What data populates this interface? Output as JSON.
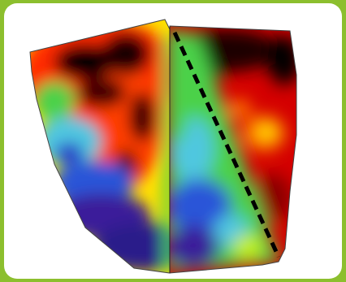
{
  "image": {
    "kind": "field-yield-heatmap",
    "border_color": "#8cbf2e",
    "background_color": "#ffffff",
    "palette": [
      "#000000",
      "#6e0000",
      "#c10000",
      "#ff2a00",
      "#ff8a00",
      "#ffe800",
      "#c8f000",
      "#4cd14a",
      "#4fc7e0",
      "#2c54d8",
      "#3a1a9a"
    ],
    "divider_style": "dashed-black"
  }
}
